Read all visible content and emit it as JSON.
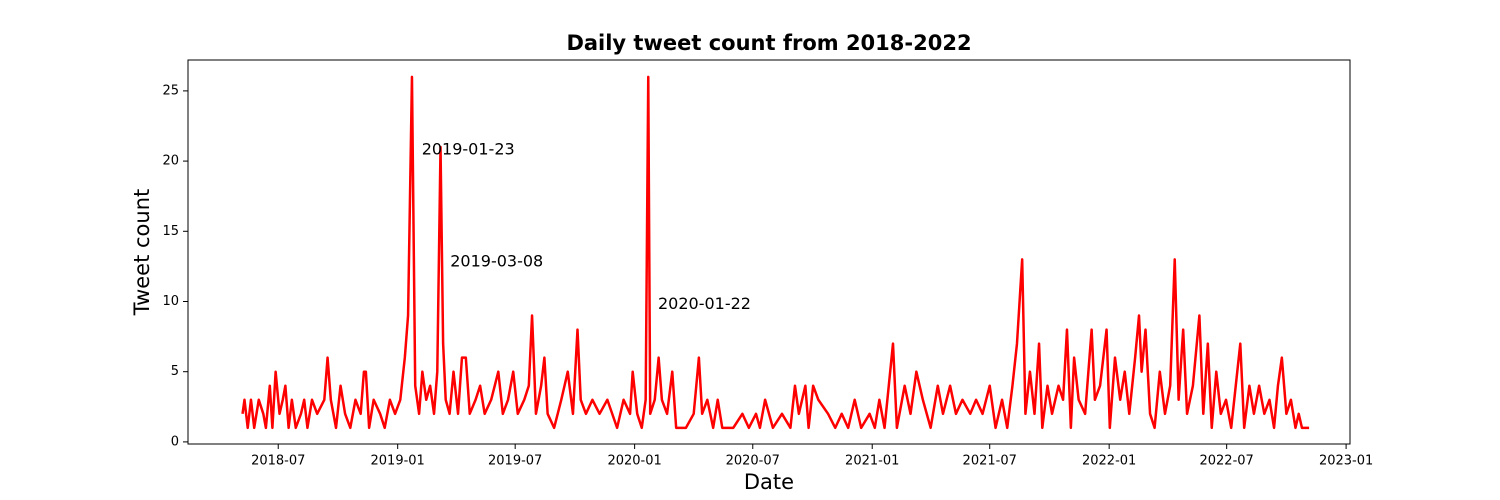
{
  "chart_data": {
    "type": "line",
    "title": "Daily tweet count from 2018-2022",
    "x_label": "Date",
    "y_label": "Tweet count",
    "x": [
      "2018-05-07",
      "2018-05-10",
      "2018-05-15",
      "2018-05-20",
      "2018-05-25",
      "2018-06-01",
      "2018-06-08",
      "2018-06-12",
      "2018-06-18",
      "2018-06-22",
      "2018-06-27",
      "2018-07-03",
      "2018-07-08",
      "2018-07-12",
      "2018-07-17",
      "2018-07-22",
      "2018-07-28",
      "2018-08-05",
      "2018-08-10",
      "2018-08-15",
      "2018-08-22",
      "2018-08-30",
      "2018-09-10",
      "2018-09-15",
      "2018-09-20",
      "2018-09-28",
      "2018-10-05",
      "2018-10-12",
      "2018-10-20",
      "2018-10-28",
      "2018-11-05",
      "2018-11-10",
      "2018-11-13",
      "2018-11-18",
      "2018-11-25",
      "2018-12-05",
      "2018-12-12",
      "2018-12-20",
      "2018-12-28",
      "2019-01-05",
      "2019-01-12",
      "2019-01-17",
      "2019-01-23",
      "2019-01-28",
      "2019-02-03",
      "2019-02-08",
      "2019-02-14",
      "2019-02-20",
      "2019-02-26",
      "2019-03-03",
      "2019-03-08",
      "2019-03-12",
      "2019-03-16",
      "2019-03-22",
      "2019-03-28",
      "2019-04-04",
      "2019-04-10",
      "2019-04-16",
      "2019-04-22",
      "2019-05-01",
      "2019-05-08",
      "2019-05-15",
      "2019-05-25",
      "2019-06-05",
      "2019-06-12",
      "2019-06-20",
      "2019-06-28",
      "2019-07-05",
      "2019-07-15",
      "2019-07-22",
      "2019-07-27",
      "2019-08-02",
      "2019-08-10",
      "2019-08-15",
      "2019-08-20",
      "2019-08-30",
      "2019-09-10",
      "2019-09-20",
      "2019-09-28",
      "2019-10-05",
      "2019-10-10",
      "2019-10-18",
      "2019-10-28",
      "2019-11-08",
      "2019-11-20",
      "2019-12-05",
      "2019-12-15",
      "2019-12-25",
      "2019-12-29",
      "2020-01-05",
      "2020-01-12",
      "2020-01-18",
      "2020-01-22",
      "2020-01-25",
      "2020-02-01",
      "2020-02-07",
      "2020-02-12",
      "2020-02-20",
      "2020-02-28",
      "2020-03-05",
      "2020-03-20",
      "2020-04-01",
      "2020-04-09",
      "2020-04-14",
      "2020-04-22",
      "2020-05-01",
      "2020-05-08",
      "2020-05-15",
      "2020-06-01",
      "2020-06-15",
      "2020-06-25",
      "2020-07-06",
      "2020-07-12",
      "2020-07-20",
      "2020-08-01",
      "2020-08-15",
      "2020-08-28",
      "2020-09-04",
      "2020-09-10",
      "2020-09-20",
      "2020-09-25",
      "2020-10-02",
      "2020-10-10",
      "2020-10-25",
      "2020-11-05",
      "2020-11-15",
      "2020-11-25",
      "2020-12-05",
      "2020-12-15",
      "2020-12-28",
      "2021-01-05",
      "2021-01-12",
      "2021-01-20",
      "2021-02-02",
      "2021-02-08",
      "2021-02-20",
      "2021-03-01",
      "2021-03-10",
      "2021-03-20",
      "2021-04-01",
      "2021-04-12",
      "2021-04-20",
      "2021-05-01",
      "2021-05-10",
      "2021-05-20",
      "2021-06-01",
      "2021-06-10",
      "2021-06-20",
      "2021-07-01",
      "2021-07-10",
      "2021-07-20",
      "2021-07-28",
      "2021-08-05",
      "2021-08-12",
      "2021-08-20",
      "2021-08-25",
      "2021-09-01",
      "2021-09-08",
      "2021-09-15",
      "2021-09-20",
      "2021-09-28",
      "2021-10-05",
      "2021-10-15",
      "2021-10-22",
      "2021-10-28",
      "2021-11-03",
      "2021-11-08",
      "2021-11-15",
      "2021-11-25",
      "2021-12-05",
      "2021-12-10",
      "2021-12-18",
      "2021-12-28",
      "2022-01-02",
      "2022-01-10",
      "2022-01-18",
      "2022-01-25",
      "2022-02-01",
      "2022-02-10",
      "2022-02-16",
      "2022-02-20",
      "2022-02-26",
      "2022-03-05",
      "2022-03-12",
      "2022-03-20",
      "2022-03-28",
      "2022-04-05",
      "2022-04-12",
      "2022-04-18",
      "2022-04-25",
      "2022-05-01",
      "2022-05-10",
      "2022-05-20",
      "2022-05-26",
      "2022-06-02",
      "2022-06-08",
      "2022-06-15",
      "2022-06-22",
      "2022-06-30",
      "2022-07-08",
      "2022-07-15",
      "2022-07-22",
      "2022-07-28",
      "2022-08-05",
      "2022-08-12",
      "2022-08-20",
      "2022-08-28",
      "2022-09-05",
      "2022-09-12",
      "2022-09-18",
      "2022-09-24",
      "2022-10-01",
      "2022-10-08",
      "2022-10-15",
      "2022-10-20",
      "2022-10-25",
      "2022-11-05"
    ],
    "series": [
      {
        "name": "Tweet count",
        "color": "#ff0000",
        "values": [
          2,
          3,
          1,
          3,
          1,
          3,
          2,
          1,
          4,
          1,
          5,
          2,
          3,
          4,
          1,
          3,
          1,
          2,
          3,
          1,
          3,
          2,
          3,
          6,
          3,
          1,
          4,
          2,
          1,
          3,
          2,
          5,
          5,
          1,
          3,
          2,
          1,
          3,
          2,
          3,
          6,
          9,
          26,
          4,
          2,
          5,
          3,
          4,
          2,
          5,
          21,
          7,
          3,
          2,
          5,
          2,
          6,
          6,
          2,
          3,
          4,
          2,
          3,
          5,
          2,
          3,
          5,
          2,
          3,
          4,
          9,
          2,
          4,
          6,
          2,
          1,
          3,
          5,
          2,
          8,
          3,
          2,
          3,
          2,
          3,
          1,
          3,
          2,
          5,
          2,
          1,
          3,
          26,
          2,
          3,
          6,
          3,
          2,
          5,
          1,
          1,
          2,
          6,
          2,
          3,
          1,
          3,
          1,
          1,
          2,
          1,
          2,
          1,
          3,
          1,
          2,
          1,
          4,
          2,
          4,
          1,
          4,
          3,
          2,
          1,
          2,
          1,
          3,
          1,
          2,
          1,
          3,
          1,
          7,
          1,
          4,
          2,
          5,
          3,
          1,
          4,
          2,
          4,
          2,
          3,
          2,
          3,
          2,
          4,
          1,
          3,
          1,
          4,
          7,
          13,
          2,
          5,
          2,
          7,
          1,
          4,
          2,
          4,
          3,
          8,
          1,
          6,
          3,
          2,
          8,
          3,
          4,
          8,
          1,
          6,
          3,
          5,
          2,
          6,
          9,
          5,
          8,
          2,
          1,
          5,
          2,
          4,
          13,
          3,
          8,
          2,
          4,
          9,
          2,
          7,
          1,
          5,
          2,
          3,
          1,
          4,
          7,
          1,
          4,
          2,
          4,
          2,
          3,
          1,
          4,
          6,
          2,
          3,
          1,
          2,
          1,
          1
        ]
      }
    ],
    "annotations": [
      {
        "text": "2019-01-23",
        "x": "2019-02-07",
        "y": 20.8
      },
      {
        "text": "2019-03-08",
        "x": "2019-03-23",
        "y": 12.8
      },
      {
        "text": "2020-01-22",
        "x": "2020-02-06",
        "y": 9.8
      }
    ],
    "xlim": [
      "2018-02-12",
      "2023-01-07"
    ],
    "ylim": [
      -0.15,
      27.2
    ],
    "xticks": [
      {
        "value": "2018-07-01",
        "label": "2018-07"
      },
      {
        "value": "2019-01-01",
        "label": "2019-01"
      },
      {
        "value": "2019-07-01",
        "label": "2019-07"
      },
      {
        "value": "2020-01-01",
        "label": "2020-01"
      },
      {
        "value": "2020-07-01",
        "label": "2020-07"
      },
      {
        "value": "2021-01-01",
        "label": "2021-01"
      },
      {
        "value": "2021-07-01",
        "label": "2021-07"
      },
      {
        "value": "2022-01-01",
        "label": "2022-01"
      },
      {
        "value": "2022-07-01",
        "label": "2022-07"
      },
      {
        "value": "2023-01-01",
        "label": "2023-01"
      }
    ],
    "yticks": [
      0,
      5,
      10,
      15,
      20,
      25
    ]
  }
}
